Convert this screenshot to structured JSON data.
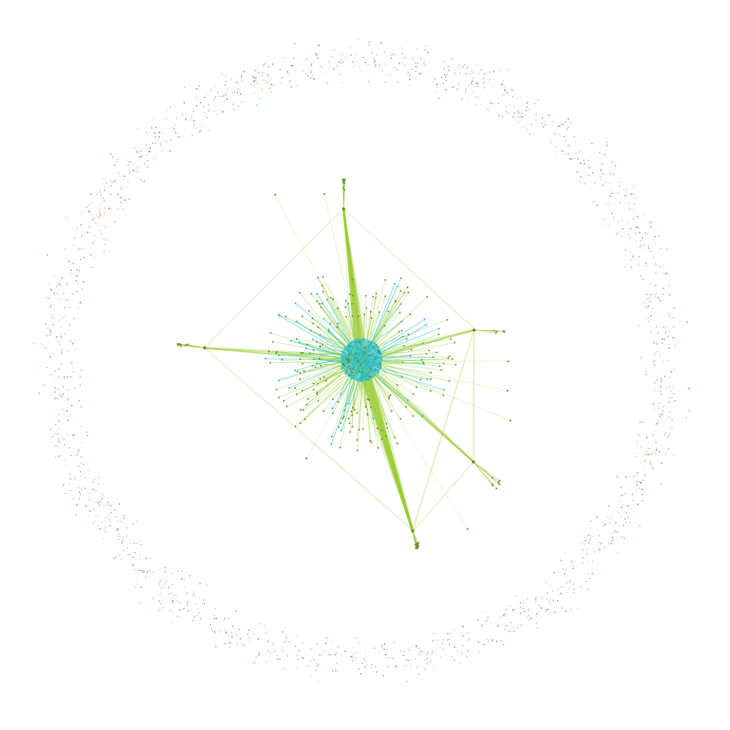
{
  "graph": {
    "type": "network",
    "layout": "force-directed",
    "isolated_ring": true,
    "colors": {
      "background": "#ffffff",
      "edge_primary": "#9acd32",
      "edge_secondary": "#00bcd4",
      "node_core": "#26bcd7",
      "node_hub": "#6b8e23",
      "ring_node_palette": [
        "#d62728",
        "#1f77b4",
        "#2ca02c",
        "#9467bd",
        "#8c564b",
        "#e377c2",
        "#17becf",
        "#bcbd22",
        "#7f7f7f",
        "#ff7f0e"
      ]
    },
    "components": [
      {
        "name": "core-cluster",
        "role": "dense-core"
      },
      {
        "name": "hub-top",
        "role": "hub"
      },
      {
        "name": "hub-left",
        "role": "hub"
      },
      {
        "name": "hub-bottom",
        "role": "hub"
      },
      {
        "name": "hub-right",
        "role": "hub"
      },
      {
        "name": "hub-right-lower",
        "role": "hub"
      },
      {
        "name": "isolated-ring",
        "role": "isolated-nodes"
      }
    ]
  }
}
